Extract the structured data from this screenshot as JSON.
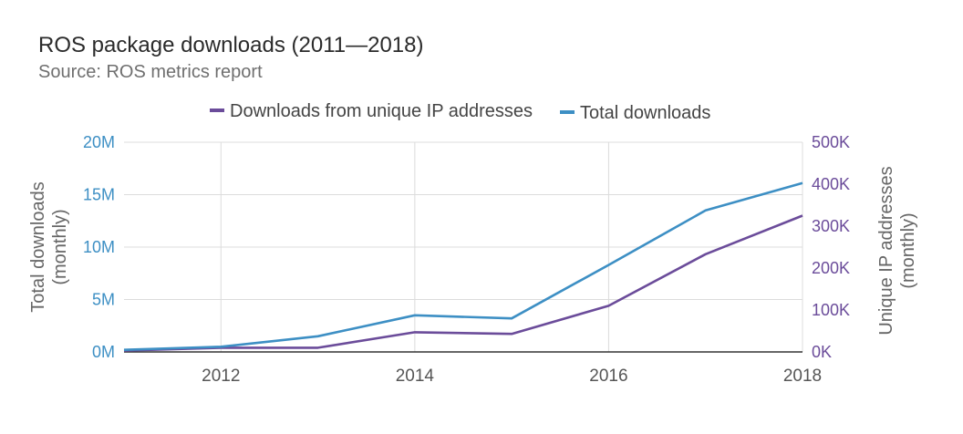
{
  "chart_data": {
    "type": "line",
    "title": "ROS package downloads (2011—2018)",
    "subtitle": "Source: ROS metrics report",
    "x": [
      2011,
      2012,
      2013,
      2014,
      2015,
      2016,
      2017,
      2018
    ],
    "x_ticks": [
      "2012",
      "2014",
      "2016",
      "2018"
    ],
    "xlim": [
      2011,
      2018
    ],
    "left_axis": {
      "label_lines": [
        "Total downloads",
        "(monthly)"
      ],
      "ylim": [
        0,
        20000000
      ],
      "tick_values": [
        0,
        5000000,
        10000000,
        15000000,
        20000000
      ],
      "tick_labels": [
        "0M",
        "5M",
        "10M",
        "15M",
        "20M"
      ],
      "color": "#3d8fc4"
    },
    "right_axis": {
      "label_lines": [
        "Unique IP addresses",
        "(monthly)"
      ],
      "ylim": [
        0,
        500000
      ],
      "tick_values": [
        0,
        100000,
        200000,
        300000,
        400000,
        500000
      ],
      "tick_labels": [
        "0K",
        "100K",
        "200K",
        "300K",
        "400K",
        "500K"
      ],
      "color": "#6b4c9a"
    },
    "series": [
      {
        "name": "Downloads from unique IP addresses",
        "axis": "right",
        "color": "#6b4c9a",
        "values": [
          3000,
          10000,
          10000,
          47000,
          43000,
          110000,
          233000,
          325000
        ]
      },
      {
        "name": "Total downloads",
        "axis": "left",
        "color": "#3d8fc4",
        "values": [
          200000,
          500000,
          1500000,
          3500000,
          3200000,
          8300000,
          13500000,
          16100000
        ]
      }
    ],
    "legend_position": "top-center",
    "grid": true
  }
}
